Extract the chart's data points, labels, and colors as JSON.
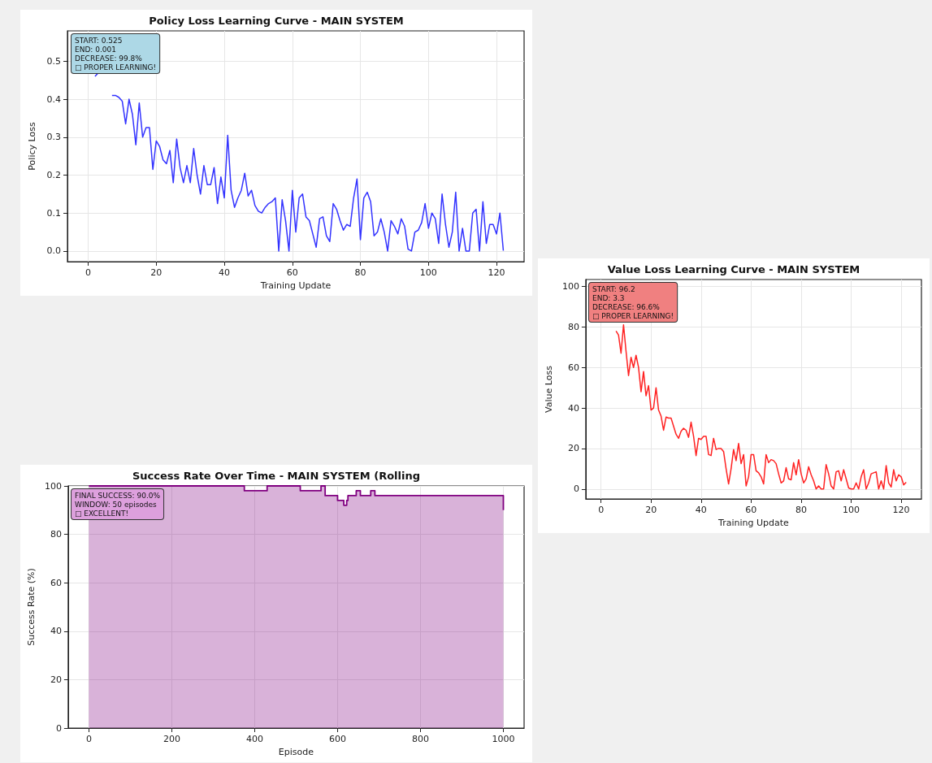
{
  "chart_data": [
    {
      "type": "line",
      "title": "Policy Loss Learning Curve - MAIN SYSTEM",
      "xlabel": "Training Update",
      "ylabel": "Policy Loss",
      "color": "#3333ff",
      "x": [
        2,
        3,
        4,
        5,
        6,
        7,
        8,
        9,
        10,
        11,
        12,
        13,
        14,
        15,
        16,
        17,
        18,
        19,
        20,
        21,
        22,
        23,
        24,
        25,
        26,
        27,
        28,
        29,
        30,
        31,
        32,
        33,
        34,
        35,
        36,
        37,
        38,
        39,
        40,
        41,
        42,
        43,
        44,
        45,
        46,
        47,
        48,
        49,
        50,
        51,
        52,
        53,
        54,
        55,
        56,
        57,
        58,
        59,
        60,
        61,
        62,
        63,
        64,
        65,
        66,
        67,
        68,
        69,
        70,
        71,
        72,
        73,
        74,
        75,
        76,
        77,
        78,
        79,
        80,
        81,
        82,
        83,
        84,
        85,
        86,
        87,
        88,
        89,
        90,
        91,
        92,
        93,
        94,
        95,
        96,
        97,
        98,
        99,
        100,
        101,
        102,
        103,
        104,
        105,
        106,
        107,
        108,
        109,
        110,
        111,
        112,
        113,
        114,
        115,
        116,
        117,
        118,
        119,
        120,
        121,
        122
      ],
      "values": [
        0.46,
        0.47,
        null,
        null,
        null,
        0.41,
        0.41,
        0.405,
        0.395,
        0.335,
        0.4,
        0.36,
        0.28,
        0.39,
        0.3,
        0.325,
        0.325,
        0.215,
        0.29,
        0.275,
        0.24,
        0.23,
        0.265,
        0.18,
        0.295,
        0.22,
        0.18,
        0.225,
        0.18,
        0.27,
        0.2,
        0.15,
        0.225,
        0.175,
        0.175,
        0.22,
        0.125,
        0.195,
        0.14,
        0.305,
        0.16,
        0.115,
        0.14,
        0.16,
        0.205,
        0.145,
        0.16,
        0.12,
        0.105,
        0.1,
        0.115,
        0.125,
        0.13,
        0.14,
        0.0,
        0.135,
        0.08,
        0.0,
        0.16,
        0.05,
        0.14,
        0.15,
        0.09,
        0.08,
        0.045,
        0.01,
        0.085,
        0.09,
        0.04,
        0.025,
        0.125,
        0.11,
        0.08,
        0.055,
        0.07,
        0.065,
        0.14,
        0.19,
        0.03,
        0.14,
        0.155,
        0.13,
        0.04,
        0.05,
        0.085,
        0.05,
        0.0,
        0.08,
        0.065,
        0.045,
        0.085,
        0.065,
        0.005,
        0.0,
        0.05,
        0.055,
        0.075,
        0.125,
        0.06,
        0.1,
        0.085,
        0.02,
        0.15,
        0.07,
        0.01,
        0.05,
        0.155,
        0.0,
        0.06,
        0.0,
        0.0,
        0.1,
        0.11,
        0.0,
        0.13,
        0.02,
        0.07,
        0.07,
        0.045,
        0.1,
        0.001
      ],
      "xlim": [
        -6.1,
        128.1
      ],
      "ylim": [
        -0.028,
        0.58
      ],
      "xticks": [
        0,
        20,
        40,
        60,
        80,
        100,
        120
      ],
      "yticks": [
        {
          "value": 0,
          "label": "0.0"
        },
        0.1,
        0.2,
        0.3,
        0.4,
        0.5
      ],
      "grid": true,
      "annotations": [
        "START: 0.525\nEND: 0.001\nDECREASE: 99.8%\n□ PROPER LEARNING!"
      ]
    },
    {
      "type": "line",
      "title": "Value Loss Learning Curve - MAIN SYSTEM",
      "xlabel": "Training Update",
      "ylabel": "Value Loss",
      "color": "#ff2222",
      "x": [
        6,
        7,
        8,
        9,
        10,
        11,
        12,
        13,
        14,
        15,
        16,
        17,
        18,
        19,
        20,
        21,
        22,
        23,
        24,
        25,
        26,
        27,
        28,
        29,
        30,
        31,
        32,
        33,
        34,
        35,
        36,
        37,
        38,
        39,
        40,
        41,
        42,
        43,
        44,
        45,
        46,
        47,
        48,
        49,
        50,
        51,
        52,
        53,
        54,
        55,
        56,
        57,
        58,
        59,
        60,
        61,
        62,
        63,
        64,
        65,
        66,
        67,
        68,
        69,
        70,
        71,
        72,
        73,
        74,
        75,
        76,
        77,
        78,
        79,
        80,
        81,
        82,
        83,
        84,
        85,
        86,
        87,
        88,
        89,
        90,
        91,
        92,
        93,
        94,
        95,
        96,
        97,
        98,
        99,
        100,
        101,
        102,
        103,
        104,
        105,
        106,
        107,
        108,
        109,
        110,
        111,
        112,
        113,
        114,
        115,
        116,
        117,
        118,
        119,
        120,
        121,
        122
      ],
      "values": [
        78,
        76,
        67,
        81,
        68,
        56,
        65,
        60,
        66,
        60,
        48,
        58,
        46,
        51,
        39,
        40,
        50,
        39,
        36,
        29,
        35.5,
        35,
        35,
        31,
        27,
        25,
        28.5,
        30,
        29,
        25.5,
        33,
        26,
        16.5,
        25,
        24.5,
        26,
        26,
        17,
        16.5,
        25,
        19.5,
        20,
        20,
        18.5,
        10,
        2.5,
        10,
        19.5,
        14,
        22.5,
        12.5,
        17,
        1.5,
        6,
        17,
        17,
        9,
        8,
        6,
        2.5,
        17,
        13,
        14.5,
        14,
        12.5,
        7.5,
        3,
        4,
        10.5,
        5,
        4.5,
        13,
        7,
        14.5,
        7.5,
        3,
        5,
        11,
        7,
        4,
        0,
        1.5,
        0,
        0,
        12,
        7.5,
        1.5,
        0,
        8.5,
        9,
        4,
        9.5,
        5,
        0.5,
        0,
        0,
        3,
        0,
        6,
        9.5,
        0,
        3,
        7.5,
        8,
        8.5,
        0,
        4,
        0,
        11.5,
        3,
        1,
        9.5,
        4,
        7,
        6,
        2,
        3.3
      ],
      "xlim": [
        -6.1,
        128.1
      ],
      "ylim": [
        -4.9,
        103.4
      ],
      "xticks": [
        0,
        20,
        40,
        60,
        80,
        100,
        120
      ],
      "yticks": [
        0,
        20,
        40,
        60,
        80,
        100
      ],
      "grid": true,
      "annotations": [
        "START: 96.2\nEND: 3.3\nDECREASE: 96.6%\n□ PROPER LEARNING!"
      ]
    },
    {
      "type": "step",
      "title": "Success Rate Over Time - MAIN SYSTEM (Rolling",
      "xlabel": "Episode",
      "ylabel": "Success Rate (%)",
      "color": "#800080",
      "x": [
        0,
        375,
        430,
        510,
        560,
        570,
        600,
        615,
        622,
        625,
        645,
        655,
        680,
        690,
        1000
      ],
      "values": [
        100,
        98,
        100,
        98,
        100,
        96,
        94,
        92,
        94,
        96,
        98,
        96,
        98,
        96,
        90
      ],
      "xlim": [
        -50,
        1050
      ],
      "ylim": [
        0,
        100
      ],
      "xticks": [
        0,
        200,
        400,
        600,
        800,
        1000
      ],
      "yticks": [
        0,
        20,
        40,
        60,
        80,
        100
      ],
      "grid": true,
      "annotations": [
        "FINAL SUCCESS: 90.0%\nWINDOW: 50 episodes\n□ EXCELLENT!"
      ]
    }
  ]
}
